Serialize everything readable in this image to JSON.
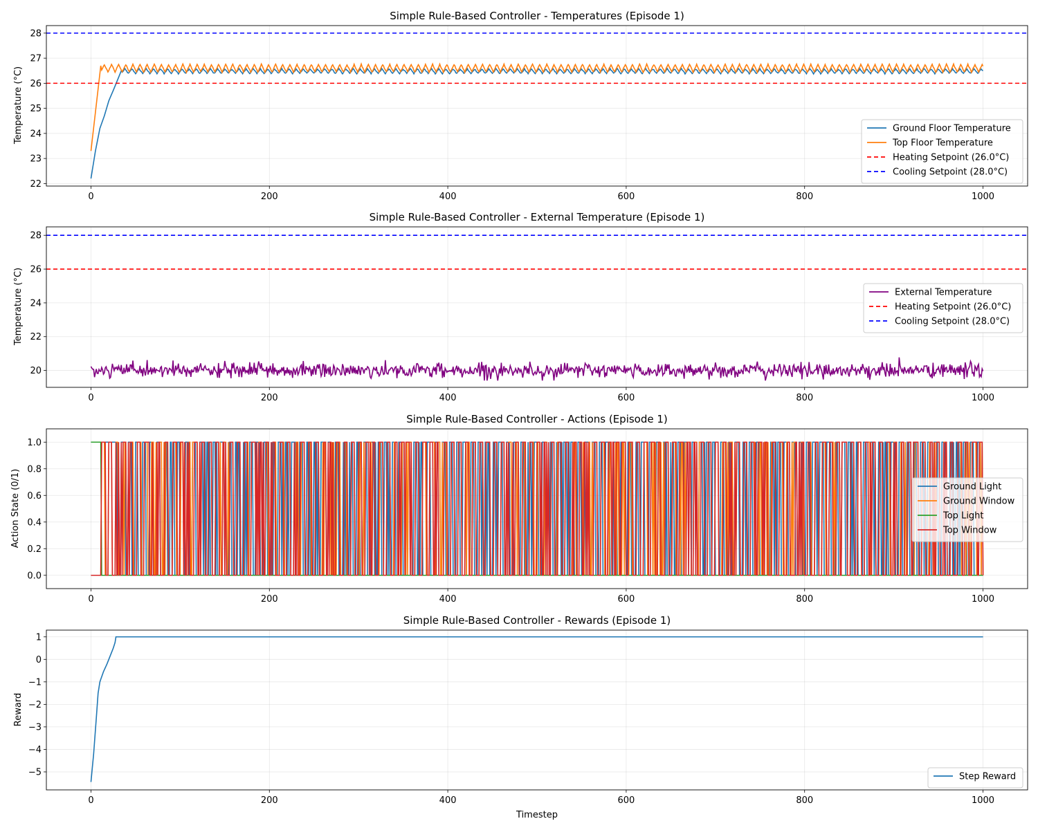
{
  "figure": {
    "shared_xlabel": "Timestep",
    "x_ticks": [
      0,
      200,
      400,
      600,
      800,
      1000
    ]
  },
  "chart_data": [
    {
      "type": "line",
      "title": "Simple Rule-Based Controller - Temperatures (Episode 1)",
      "xlabel": "",
      "ylabel": "Temperature (°C)",
      "xlim": [
        -50,
        1050
      ],
      "ylim": [
        21.9,
        28.3
      ],
      "y_ticks": [
        22,
        23,
        24,
        25,
        26,
        27,
        28
      ],
      "y_tick_labels": [
        "22",
        "23",
        "24",
        "25",
        "26",
        "27",
        "28"
      ],
      "grid": true,
      "legend_position": "lower right",
      "series": [
        {
          "name": "Ground Floor Temperature",
          "color": "#1f77b4",
          "style": "solid",
          "generator": "ramp_then_oscillate",
          "start": 22.2,
          "settle_x": 34,
          "ramp_points": [
            [
              0,
              22.2
            ],
            [
              5,
              23.3
            ],
            [
              10,
              24.2
            ],
            [
              15,
              24.7
            ],
            [
              20,
              25.3
            ],
            [
              26,
              25.8
            ],
            [
              34,
              26.5
            ]
          ],
          "oscillation_center": 26.48,
          "oscillation_amplitude": 0.09,
          "period": 8
        },
        {
          "name": "Top Floor Temperature",
          "color": "#ff7f0e",
          "style": "solid",
          "generator": "ramp_then_oscillate",
          "start": 23.3,
          "settle_x": 11,
          "ramp_points": [
            [
              0,
              23.3
            ],
            [
              11,
              26.7
            ]
          ],
          "oscillation_center": 26.6,
          "oscillation_amplitude": 0.15,
          "period": 8
        },
        {
          "name": "Heating Setpoint (26.0°C)",
          "color": "#ff0000",
          "style": "dashed",
          "hline": 26.0
        },
        {
          "name": "Cooling Setpoint (28.0°C)",
          "color": "#0000ff",
          "style": "dashed",
          "hline": 28.0
        }
      ]
    },
    {
      "type": "line",
      "title": "Simple Rule-Based Controller - External Temperature (Episode 1)",
      "xlabel": "",
      "ylabel": "Temperature (°C)",
      "xlim": [
        -50,
        1050
      ],
      "ylim": [
        19.0,
        28.5
      ],
      "y_ticks": [
        20,
        22,
        24,
        26,
        28
      ],
      "y_tick_labels": [
        "20",
        "22",
        "24",
        "26",
        "28"
      ],
      "grid": true,
      "legend_position": "center right",
      "series": [
        {
          "name": "External Temperature",
          "color": "#800080",
          "style": "solid",
          "generator": "noise",
          "mean": 20.0,
          "std": 0.22,
          "min": 19.4,
          "max": 20.8
        },
        {
          "name": "Heating Setpoint (26.0°C)",
          "color": "#ff0000",
          "style": "dashed",
          "hline": 26.0
        },
        {
          "name": "Cooling Setpoint (28.0°C)",
          "color": "#0000ff",
          "style": "dashed",
          "hline": 28.0
        }
      ]
    },
    {
      "type": "line",
      "title": "Simple Rule-Based Controller - Actions (Episode 1)",
      "xlabel": "",
      "ylabel": "Action State (0/1)",
      "xlim": [
        -50,
        1050
      ],
      "ylim": [
        -0.1,
        1.1
      ],
      "y_ticks": [
        0.0,
        0.2,
        0.4,
        0.6,
        0.8,
        1.0
      ],
      "y_tick_labels": [
        "0.0",
        "0.2",
        "0.4",
        "0.6",
        "0.8",
        "1.0"
      ],
      "grid": true,
      "legend_position": "center right",
      "series": [
        {
          "name": "Ground Light",
          "color": "#1f77b4",
          "style": "solid",
          "generator": "binary_switching",
          "initial": 1,
          "first_switch": 30,
          "switch_period": 4
        },
        {
          "name": "Ground Window",
          "color": "#ff7f0e",
          "style": "solid",
          "generator": "binary_switching",
          "initial": 0,
          "first_switch": 12,
          "switch_period": 4
        },
        {
          "name": "Top Light",
          "color": "#2ca02c",
          "style": "solid",
          "generator": "binary_switching",
          "initial": 1,
          "first_switch": 12,
          "switch_period": 0,
          "steady_value": 0
        },
        {
          "name": "Top Window",
          "color": "#d62728",
          "style": "solid",
          "generator": "binary_switching",
          "initial": 0,
          "first_switch": 12,
          "switch_period": 4
        }
      ]
    },
    {
      "type": "line",
      "title": "Simple Rule-Based Controller - Rewards (Episode 1)",
      "xlabel": "Timestep",
      "ylabel": "Reward",
      "xlim": [
        -50,
        1050
      ],
      "ylim": [
        -5.8,
        1.3
      ],
      "y_ticks": [
        -5,
        -4,
        -3,
        -2,
        -1,
        0,
        1
      ],
      "y_tick_labels": [
        "−5",
        "−4",
        "−3",
        "−2",
        "−1",
        "0",
        "1"
      ],
      "grid": true,
      "legend_position": "lower right",
      "series": [
        {
          "name": "Step Reward",
          "color": "#1f77b4",
          "style": "solid",
          "generator": "piecewise",
          "points": [
            [
              0,
              -5.45
            ],
            [
              3,
              -4.2
            ],
            [
              6,
              -2.6
            ],
            [
              8,
              -1.5
            ],
            [
              10,
              -1.0
            ],
            [
              14,
              -0.55
            ],
            [
              18,
              -0.2
            ],
            [
              22,
              0.2
            ],
            [
              25,
              0.5
            ],
            [
              27,
              0.75
            ],
            [
              28,
              1.0
            ],
            [
              1000,
              1.0
            ]
          ]
        }
      ]
    }
  ]
}
